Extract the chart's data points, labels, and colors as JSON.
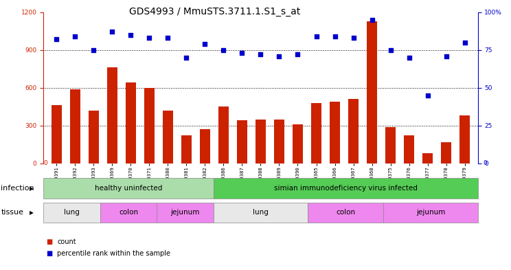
{
  "title": "GDS4993 / MmuSTS.3711.1.S1_s_at",
  "samples": [
    "GSM1249391",
    "GSM1249392",
    "GSM1249393",
    "GSM1249369",
    "GSM1249370",
    "GSM1249371",
    "GSM1249380",
    "GSM1249381",
    "GSM1249382",
    "GSM1249386",
    "GSM1249387",
    "GSM1249388",
    "GSM1249389",
    "GSM1249390",
    "GSM1249365",
    "GSM1249366",
    "GSM1249367",
    "GSM1249368",
    "GSM1249375",
    "GSM1249376",
    "GSM1249377",
    "GSM1249378",
    "GSM1249379"
  ],
  "counts": [
    460,
    590,
    420,
    760,
    640,
    600,
    420,
    220,
    270,
    450,
    340,
    350,
    350,
    310,
    480,
    490,
    510,
    1130,
    290,
    220,
    80,
    170,
    380
  ],
  "percentiles": [
    82,
    84,
    75,
    87,
    85,
    83,
    83,
    70,
    79,
    75,
    73,
    72,
    71,
    72,
    84,
    84,
    83,
    95,
    75,
    70,
    45,
    71,
    80
  ],
  "ylim_left": [
    0,
    1200
  ],
  "ylim_right": [
    0,
    100
  ],
  "yticks_left": [
    0,
    300,
    600,
    900,
    1200
  ],
  "yticks_right": [
    0,
    25,
    50,
    75,
    100
  ],
  "bar_color": "#cc2200",
  "dot_color": "#0000cc",
  "background_color": "#ffffff",
  "plot_bg_color": "#ffffff",
  "inf_groups": [
    {
      "label": "healthy uninfected",
      "start": 0,
      "end": 9,
      "color": "#aaddaa"
    },
    {
      "label": "simian immunodeficiency virus infected",
      "start": 9,
      "end": 23,
      "color": "#55cc55"
    }
  ],
  "tis_groups": [
    {
      "label": "lung",
      "start": 0,
      "end": 3,
      "color": "#e8e8e8"
    },
    {
      "label": "colon",
      "start": 3,
      "end": 6,
      "color": "#ee88ee"
    },
    {
      "label": "jejunum",
      "start": 6,
      "end": 9,
      "color": "#ee88ee"
    },
    {
      "label": "lung",
      "start": 9,
      "end": 14,
      "color": "#e8e8e8"
    },
    {
      "label": "colon",
      "start": 14,
      "end": 18,
      "color": "#ee88ee"
    },
    {
      "label": "jejunum",
      "start": 18,
      "end": 23,
      "color": "#ee88ee"
    }
  ],
  "infection_label": "infection",
  "tissue_label": "tissue",
  "legend_count": "count",
  "legend_percentile": "percentile rank within the sample",
  "title_fontsize": 10,
  "label_fontsize": 8,
  "tick_fontsize": 6.5
}
